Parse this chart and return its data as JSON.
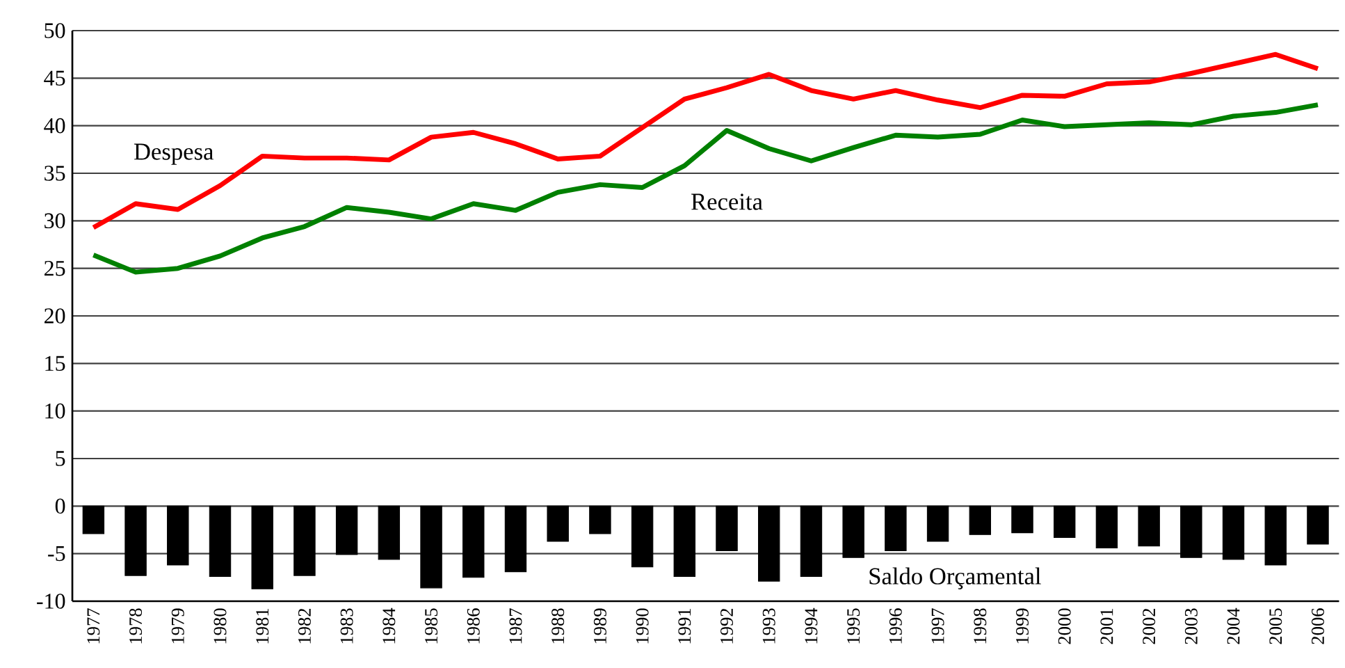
{
  "chart_data": {
    "type": "line",
    "categories": [
      "1977",
      "1978",
      "1979",
      "1980",
      "1981",
      "1982",
      "1983",
      "1984",
      "1985",
      "1986",
      "1987",
      "1988",
      "1989",
      "1990",
      "1991",
      "1992",
      "1993",
      "1994",
      "1995",
      "1996",
      "1997",
      "1998",
      "1999",
      "2000",
      "2001",
      "2002",
      "2003",
      "2004",
      "2005",
      "2006"
    ],
    "series": [
      {
        "name": "Despesa",
        "color": "#ff0000",
        "values": [
          29.3,
          31.8,
          31.2,
          33.7,
          36.8,
          36.6,
          36.6,
          36.4,
          38.8,
          39.3,
          38.1,
          36.5,
          36.8,
          39.8,
          42.8,
          44.0,
          45.4,
          43.7,
          42.8,
          43.7,
          42.7,
          41.9,
          43.2,
          43.1,
          44.4,
          44.6,
          45.5,
          46.5,
          47.5,
          46.0
        ]
      },
      {
        "name": "Receita",
        "color": "#008000",
        "values": [
          26.4,
          24.6,
          25.0,
          26.3,
          28.2,
          29.4,
          31.4,
          30.9,
          30.2,
          31.8,
          31.1,
          33.0,
          33.8,
          33.5,
          35.8,
          39.5,
          37.6,
          36.3,
          37.7,
          39.0,
          38.8,
          39.1,
          40.6,
          39.9,
          40.1,
          40.3,
          40.1,
          41.0,
          41.4,
          42.2
        ]
      },
      {
        "name": "Saldo Orçamental",
        "type": "bar",
        "color": "#000000",
        "values": [
          -2.9,
          -7.3,
          -6.2,
          -7.4,
          -8.7,
          -7.3,
          -5.1,
          -5.6,
          -8.6,
          -7.5,
          -6.9,
          -3.7,
          -2.9,
          -6.4,
          -7.4,
          -4.7,
          -7.9,
          -7.4,
          -5.4,
          -4.7,
          -3.7,
          -3.0,
          -2.8,
          -3.3,
          -4.4,
          -4.2,
          -5.4,
          -5.6,
          -6.2,
          -4.0
        ]
      }
    ],
    "ylim": [
      -10,
      50
    ],
    "yticks": [
      -10,
      -5,
      0,
      5,
      10,
      15,
      20,
      25,
      30,
      35,
      40,
      45,
      50
    ],
    "grid": "y",
    "marker": "none",
    "line_style": "solid"
  }
}
